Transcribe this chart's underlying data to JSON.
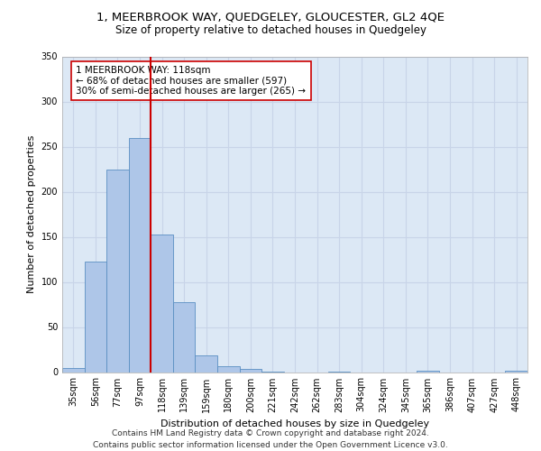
{
  "title": "1, MEERBROOK WAY, QUEDGELEY, GLOUCESTER, GL2 4QE",
  "subtitle": "Size of property relative to detached houses in Quedgeley",
  "xlabel": "Distribution of detached houses by size in Quedgeley",
  "ylabel": "Number of detached properties",
  "bin_labels": [
    "35sqm",
    "56sqm",
    "77sqm",
    "97sqm",
    "118sqm",
    "139sqm",
    "159sqm",
    "180sqm",
    "200sqm",
    "221sqm",
    "242sqm",
    "262sqm",
    "283sqm",
    "304sqm",
    "324sqm",
    "345sqm",
    "365sqm",
    "386sqm",
    "407sqm",
    "427sqm",
    "448sqm"
  ],
  "bar_values": [
    5,
    123,
    225,
    260,
    153,
    78,
    19,
    7,
    4,
    1,
    0,
    0,
    1,
    0,
    0,
    0,
    2,
    0,
    0,
    0,
    2
  ],
  "bar_color": "#aec6e8",
  "bar_edge_color": "#5a8fc2",
  "red_line_bin": 4,
  "red_line_color": "#cc0000",
  "annotation_text": "1 MEERBROOK WAY: 118sqm\n← 68% of detached houses are smaller (597)\n30% of semi-detached houses are larger (265) →",
  "annotation_box_color": "#ffffff",
  "annotation_box_edge": "#cc0000",
  "ylim": [
    0,
    350
  ],
  "yticks": [
    0,
    50,
    100,
    150,
    200,
    250,
    300,
    350
  ],
  "grid_color": "#c8d4e8",
  "bg_color": "#dce8f5",
  "footer": "Contains HM Land Registry data © Crown copyright and database right 2024.\nContains public sector information licensed under the Open Government Licence v3.0.",
  "title_fontsize": 9.5,
  "subtitle_fontsize": 8.5,
  "xlabel_fontsize": 8,
  "ylabel_fontsize": 8,
  "tick_fontsize": 7,
  "annotation_fontsize": 7.5,
  "footer_fontsize": 6.5
}
